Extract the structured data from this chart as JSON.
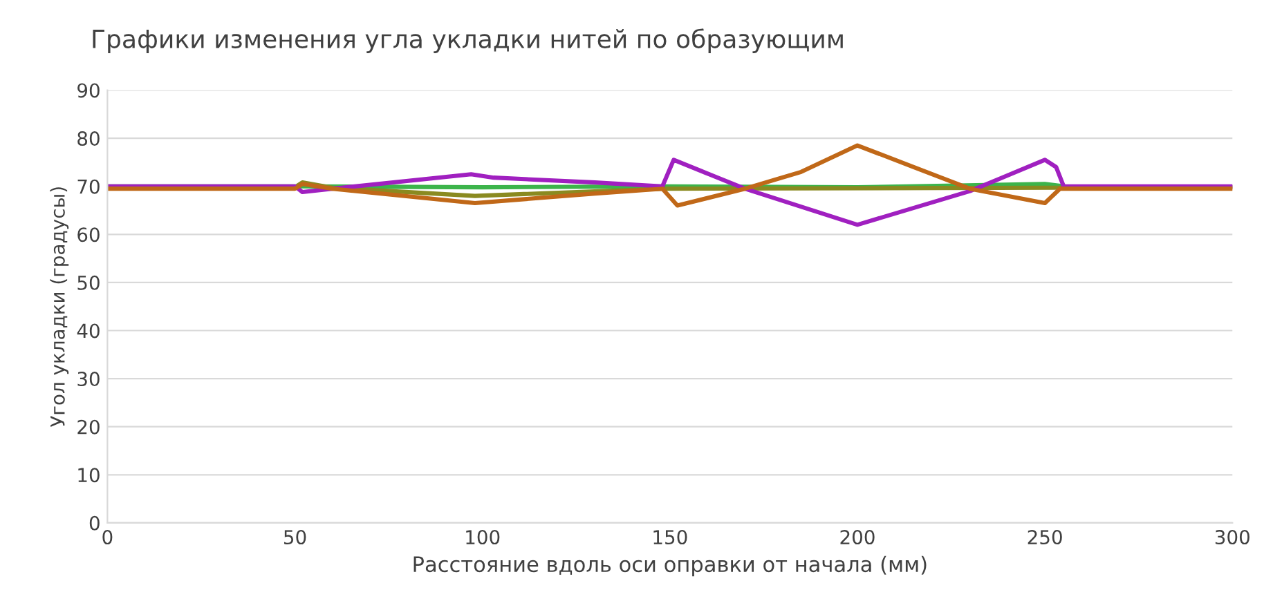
{
  "chart_data": {
    "type": "line",
    "title": "Графики изменения угла укладки нитей по образующим",
    "xlabel": "Расстояние вдоль оси оправки от начала (мм)",
    "ylabel": "Угол укладки (градусы)",
    "xlim": [
      0,
      300
    ],
    "xticks": [
      0,
      50,
      100,
      150,
      200,
      250,
      300
    ],
    "ylim": [
      0,
      90
    ],
    "yticks": [
      0,
      10,
      20,
      30,
      40,
      50,
      60,
      70,
      80,
      90
    ],
    "grid": "y",
    "legend": false,
    "line_style": "solid",
    "marker": "none",
    "series": [
      {
        "color": "#3cb44b",
        "x": [
          0,
          50,
          100,
          150,
          200,
          250,
          255
        ],
        "values": [
          70,
          70,
          69.8,
          70,
          69.8,
          70.5,
          70
        ]
      },
      {
        "color": "#8a8a20",
        "x": [
          0,
          50,
          52,
          60,
          98,
          148,
          300
        ],
        "values": [
          69.8,
          69.8,
          70.8,
          69.7,
          68,
          69.5,
          69.8
        ]
      },
      {
        "color": "#a020c0",
        "x": [
          0,
          50,
          52,
          60,
          97,
          103,
          130,
          148,
          151,
          170,
          200,
          230,
          250,
          253,
          255,
          300
        ],
        "values": [
          70,
          70,
          68.8,
          69.5,
          72.5,
          71.8,
          70.8,
          70,
          75.5,
          69.5,
          62,
          69,
          75.5,
          74,
          70,
          70
        ]
      },
      {
        "color": "#c06818",
        "x": [
          0,
          50,
          52,
          60,
          98,
          130,
          148,
          152,
          170,
          185,
          200,
          215,
          230,
          250,
          254,
          300
        ],
        "values": [
          69.5,
          69.5,
          70.5,
          69.5,
          66.5,
          68.5,
          69.5,
          66,
          69.5,
          73,
          78.5,
          74,
          69.5,
          66.5,
          69.5,
          69.5
        ]
      }
    ]
  }
}
